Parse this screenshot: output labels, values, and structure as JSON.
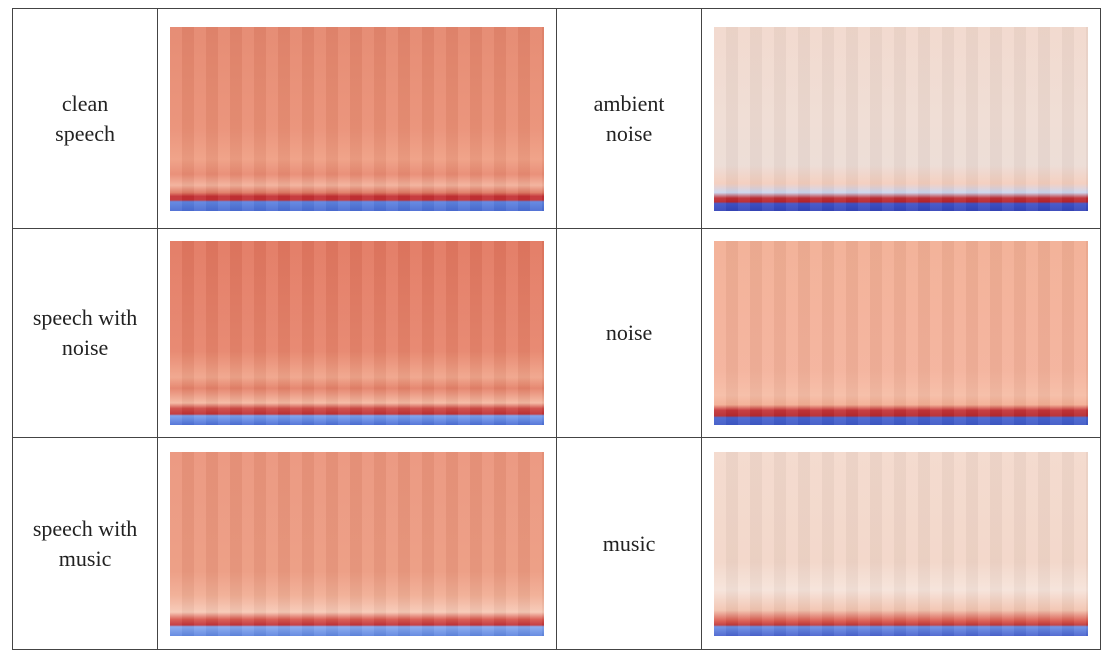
{
  "table": {
    "rows": [
      [
        [
          "clean",
          "speech"
        ],
        [
          "ambient",
          "noise"
        ]
      ],
      [
        [
          "speech with",
          "noise"
        ],
        [
          "noise"
        ]
      ],
      [
        [
          "speech with",
          "music"
        ],
        [
          "music"
        ]
      ]
    ]
  }
}
